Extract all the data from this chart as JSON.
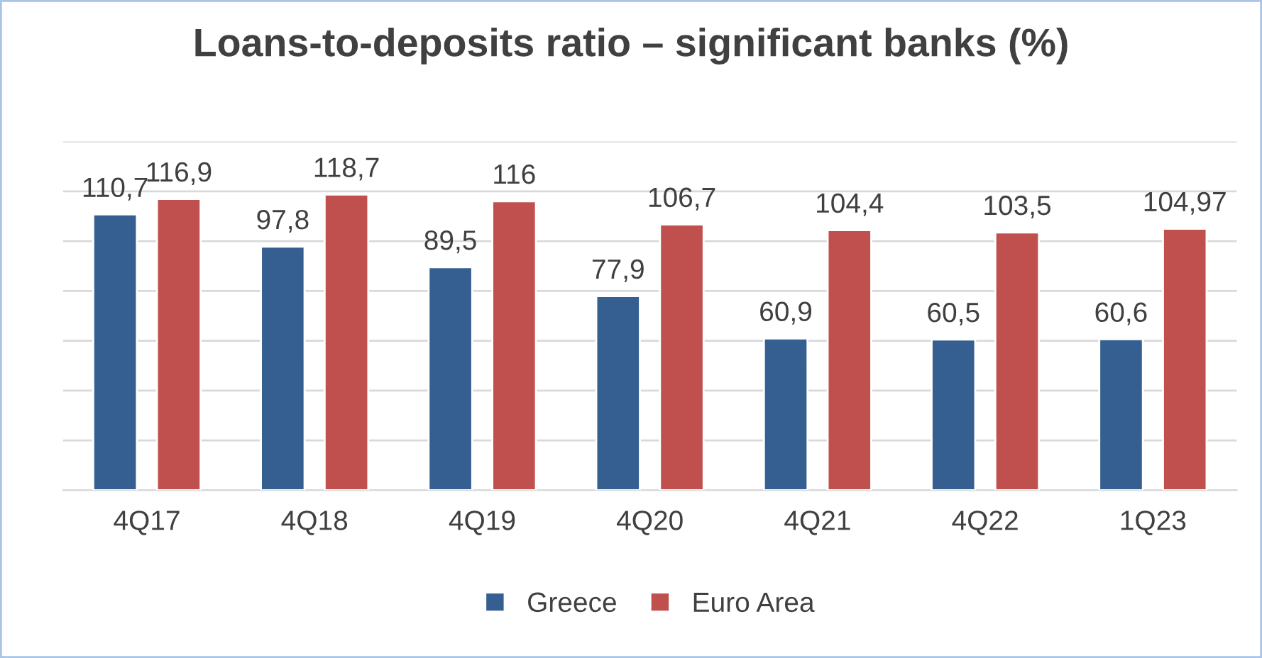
{
  "chart_data": {
    "type": "bar",
    "title": "Loans-to-deposits ratio – significant banks (%)",
    "categories": [
      "4Q17",
      "4Q18",
      "4Q19",
      "4Q20",
      "4Q21",
      "4Q22",
      "1Q23"
    ],
    "series": [
      {
        "name": "Greece",
        "color": "#365f91",
        "values": [
          110.7,
          97.8,
          89.5,
          77.9,
          60.9,
          60.5,
          60.6
        ],
        "value_labels": [
          "110,7",
          "97,8",
          "89,5",
          "77,9",
          "60,9",
          "60,5",
          "60,6"
        ]
      },
      {
        "name": "Euro Area",
        "color": "#c0504d",
        "values": [
          116.9,
          118.7,
          116,
          106.7,
          104.4,
          103.5,
          104.97
        ],
        "value_labels": [
          "116,9",
          "118,7",
          "116",
          "106,7",
          "104,4",
          "103,5",
          "104,97"
        ]
      }
    ],
    "ylim": [
      0,
      140
    ],
    "yticks": [
      {
        "value": 0,
        "label": null
      },
      {
        "value": 20,
        "label": null
      },
      {
        "value": 40,
        "label": null
      },
      {
        "value": 60,
        "label": null
      },
      {
        "value": 80,
        "label": null
      },
      {
        "value": 100,
        "label": null
      },
      {
        "value": 120,
        "label": null
      },
      {
        "value": 140,
        "label": null
      }
    ],
    "tick_labels": "x",
    "grid": "y",
    "legend": "bottom"
  }
}
